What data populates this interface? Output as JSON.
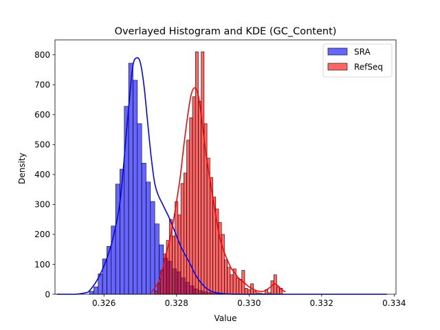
{
  "chart_data": {
    "type": "histogram",
    "title": "Overlayed Histogram and KDE (GC_Content)",
    "xlabel": "Value",
    "ylabel": "Density",
    "xlim": [
      0.32465,
      0.33405
    ],
    "ylim": [
      0,
      850
    ],
    "xticks": [
      0.326,
      0.328,
      0.33,
      0.332,
      0.334
    ],
    "xtick_labels": [
      "0.326",
      "0.328",
      "0.330",
      "0.332",
      "0.334"
    ],
    "yticks": [
      0,
      100,
      200,
      300,
      400,
      500,
      600,
      700,
      800
    ],
    "ytick_labels": [
      "0",
      "100",
      "200",
      "300",
      "400",
      "500",
      "600",
      "700",
      "800"
    ],
    "grid": false,
    "legend_position": "top-right",
    "series": [
      {
        "name": "SRA",
        "color": "#0000ff",
        "bar_alpha": 0.6,
        "bin_edges": [
          0.3256,
          0.32572,
          0.32584,
          0.32596,
          0.32608,
          0.3262,
          0.32632,
          0.32644,
          0.32656,
          0.32668,
          0.3268,
          0.32692,
          0.32704,
          0.32716,
          0.32728,
          0.3274,
          0.32752,
          0.32764,
          0.32776,
          0.32788,
          0.328,
          0.32812,
          0.32824,
          0.32836,
          0.32848,
          0.3286,
          0.32872,
          0.32884,
          0.32896,
          0.32908,
          0.3292,
          0.32932
        ],
        "densities": [
          10,
          25,
          68,
          118,
          160,
          228,
          368,
          418,
          628,
          772,
          715,
          570,
          438,
          375,
          310,
          235,
          165,
          120,
          110,
          85,
          75,
          55,
          40,
          28,
          18,
          12,
          8,
          5,
          3,
          2,
          1
        ],
        "kde": {
          "x": [
            0.3247,
            0.3252,
            0.3255,
            0.3256,
            0.3258,
            0.326,
            0.3262,
            0.3264,
            0.3265,
            0.3266,
            0.3267,
            0.3268,
            0.3269,
            0.327,
            0.3271,
            0.3272,
            0.3273,
            0.3274,
            0.3275,
            0.3276,
            0.3277,
            0.3278,
            0.3279,
            0.328,
            0.3281,
            0.3282,
            0.3283,
            0.3284,
            0.3285,
            0.3286,
            0.3287,
            0.3288,
            0.3289,
            0.329,
            0.3292,
            0.3294,
            0.3297,
            0.33,
            0.3305,
            0.331,
            0.332,
            0.333,
            0.3338
          ],
          "y": [
            0,
            0,
            5,
            12,
            45,
            95,
            165,
            275,
            375,
            515,
            650,
            765,
            790,
            775,
            700,
            580,
            460,
            370,
            330,
            305,
            280,
            255,
            225,
            195,
            165,
            140,
            118,
            95,
            70,
            50,
            35,
            22,
            14,
            8,
            3,
            1,
            0,
            0,
            0,
            0,
            0,
            0,
            0
          ]
        }
      },
      {
        "name": "RefSeq",
        "color": "#ff0000",
        "bar_alpha": 0.6,
        "bin_edges": [
          0.3274,
          0.32748,
          0.32756,
          0.32764,
          0.32772,
          0.3278,
          0.32788,
          0.32796,
          0.32804,
          0.32812,
          0.3282,
          0.32828,
          0.32836,
          0.32844,
          0.32852,
          0.3286,
          0.32868,
          0.32876,
          0.32884,
          0.32892,
          0.329,
          0.32908,
          0.32916,
          0.32924,
          0.32932,
          0.3294,
          0.32948,
          0.32956,
          0.32964,
          0.32972,
          0.3298,
          0.32988,
          0.32996,
          0.33004,
          0.33012,
          0.3302,
          0.33028,
          0.33036,
          0.33044,
          0.33052,
          0.3306,
          0.33068,
          0.33076,
          0.33084,
          0.33092
        ],
        "densities": [
          10,
          35,
          80,
          135,
          180,
          250,
          195,
          310,
          265,
          370,
          405,
          515,
          590,
          660,
          810,
          645,
          810,
          570,
          455,
          390,
          325,
          285,
          240,
          200,
          115,
          90,
          65,
          85,
          55,
          50,
          80,
          20,
          15,
          35,
          10,
          5,
          3,
          2,
          15,
          5,
          45,
          65,
          25,
          20
        ],
        "kde": {
          "x": [
            0.3273,
            0.3275,
            0.3276,
            0.3277,
            0.3278,
            0.3279,
            0.328,
            0.3281,
            0.3282,
            0.3283,
            0.3284,
            0.3285,
            0.3286,
            0.3287,
            0.3288,
            0.3289,
            0.329,
            0.3291,
            0.3292,
            0.3293,
            0.3294,
            0.3295,
            0.3296,
            0.3297,
            0.3298,
            0.3299,
            0.33,
            0.3302,
            0.3304,
            0.3306,
            0.3307,
            0.3308,
            0.3309,
            0.331
          ],
          "y": [
            5,
            40,
            75,
            130,
            175,
            235,
            310,
            390,
            495,
            590,
            665,
            690,
            665,
            580,
            480,
            400,
            325,
            250,
            185,
            145,
            115,
            88,
            72,
            55,
            45,
            35,
            25,
            12,
            10,
            25,
            35,
            28,
            15,
            8
          ]
        }
      }
    ]
  }
}
